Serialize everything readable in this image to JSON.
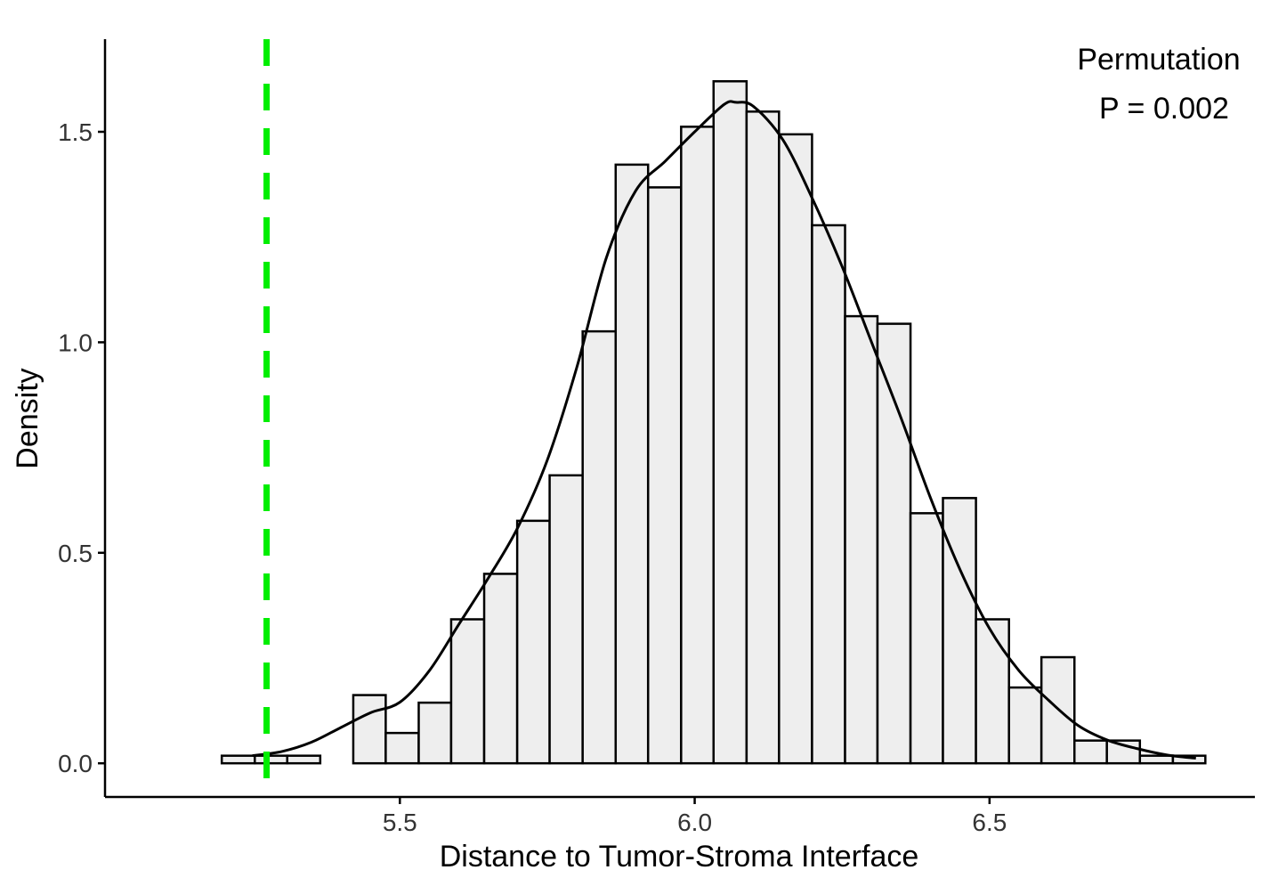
{
  "chart_data": {
    "type": "bar",
    "title": "",
    "xlabel": "Distance to Tumor-Stroma Interface",
    "ylabel": "Density",
    "xlim": [
      5.0,
      6.95
    ],
    "ylim": [
      -0.08,
      1.72
    ],
    "x_ticks": [
      5.5,
      6.0,
      6.5
    ],
    "x_tick_labels": [
      "5.5",
      "6.0",
      "6.5"
    ],
    "y_ticks": [
      0.0,
      0.5,
      1.0,
      1.5
    ],
    "y_tick_labels": [
      "0.0",
      "0.5",
      "1.0",
      "1.5"
    ],
    "grid": false,
    "bin_width": 0.0556,
    "bins": [
      {
        "x0": 5.198,
        "x1": 5.254,
        "density": 0.018
      },
      {
        "x0": 5.254,
        "x1": 5.309,
        "density": 0.018
      },
      {
        "x0": 5.309,
        "x1": 5.365,
        "density": 0.018
      },
      {
        "x0": 5.365,
        "x1": 5.421,
        "density": 0.0
      },
      {
        "x0": 5.421,
        "x1": 5.476,
        "density": 0.162
      },
      {
        "x0": 5.476,
        "x1": 5.532,
        "density": 0.072
      },
      {
        "x0": 5.532,
        "x1": 5.587,
        "density": 0.144
      },
      {
        "x0": 5.587,
        "x1": 5.643,
        "density": 0.342
      },
      {
        "x0": 5.643,
        "x1": 5.699,
        "density": 0.45
      },
      {
        "x0": 5.699,
        "x1": 5.754,
        "density": 0.576
      },
      {
        "x0": 5.754,
        "x1": 5.81,
        "density": 0.684
      },
      {
        "x0": 5.81,
        "x1": 5.866,
        "density": 1.026
      },
      {
        "x0": 5.866,
        "x1": 5.921,
        "density": 1.422
      },
      {
        "x0": 5.921,
        "x1": 5.977,
        "density": 1.368
      },
      {
        "x0": 5.977,
        "x1": 6.032,
        "density": 1.512
      },
      {
        "x0": 6.032,
        "x1": 6.088,
        "density": 1.62
      },
      {
        "x0": 6.088,
        "x1": 6.143,
        "density": 1.548
      },
      {
        "x0": 6.143,
        "x1": 6.199,
        "density": 1.494
      },
      {
        "x0": 6.199,
        "x1": 6.255,
        "density": 1.278
      },
      {
        "x0": 6.255,
        "x1": 6.31,
        "density": 1.062
      },
      {
        "x0": 6.31,
        "x1": 6.366,
        "density": 1.044
      },
      {
        "x0": 6.366,
        "x1": 6.421,
        "density": 0.594
      },
      {
        "x0": 6.421,
        "x1": 6.477,
        "density": 0.63
      },
      {
        "x0": 6.477,
        "x1": 6.533,
        "density": 0.342
      },
      {
        "x0": 6.533,
        "x1": 6.588,
        "density": 0.18
      },
      {
        "x0": 6.588,
        "x1": 6.644,
        "density": 0.252
      },
      {
        "x0": 6.644,
        "x1": 6.699,
        "density": 0.054
      },
      {
        "x0": 6.699,
        "x1": 6.755,
        "density": 0.054
      },
      {
        "x0": 6.755,
        "x1": 6.811,
        "density": 0.018
      },
      {
        "x0": 6.811,
        "x1": 6.866,
        "density": 0.018
      }
    ],
    "density_curve": {
      "x": [
        5.25,
        5.3,
        5.35,
        5.4,
        5.45,
        5.5,
        5.55,
        5.6,
        5.65,
        5.7,
        5.75,
        5.8,
        5.85,
        5.9,
        5.95,
        6.0,
        6.05,
        6.07,
        6.1,
        6.15,
        6.2,
        6.25,
        6.3,
        6.35,
        6.4,
        6.45,
        6.5,
        6.55,
        6.6,
        6.65,
        6.7,
        6.75,
        6.8,
        6.85
      ],
      "y": [
        0.018,
        0.028,
        0.05,
        0.085,
        0.12,
        0.145,
        0.22,
        0.33,
        0.44,
        0.56,
        0.72,
        0.94,
        1.2,
        1.36,
        1.43,
        1.5,
        1.565,
        1.57,
        1.56,
        1.48,
        1.34,
        1.18,
        1.0,
        0.82,
        0.63,
        0.46,
        0.32,
        0.22,
        0.15,
        0.09,
        0.055,
        0.035,
        0.02,
        0.012
      ]
    },
    "reference_line": {
      "x": 5.274,
      "color": "#00ee00",
      "style": "dashed"
    },
    "bar_fill": "#eeeeee",
    "bar_stroke": "#000000"
  },
  "annotation": {
    "line1": "Permutation",
    "line2": "P = 0.002"
  }
}
